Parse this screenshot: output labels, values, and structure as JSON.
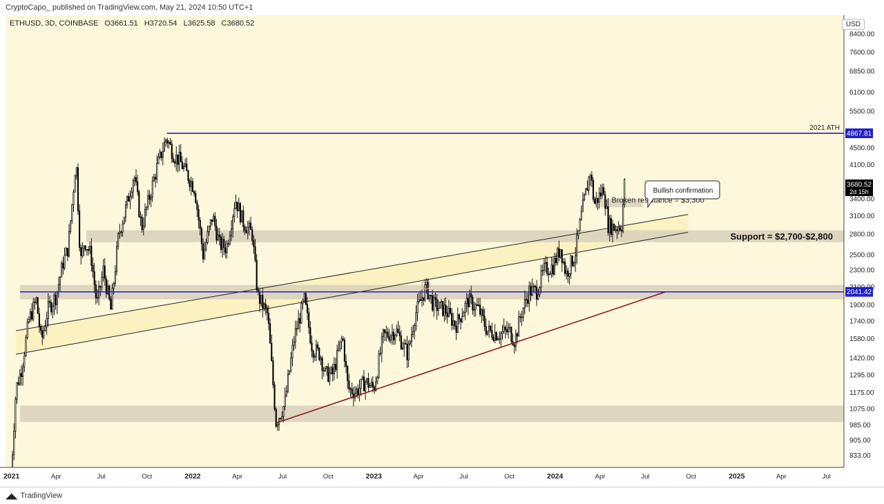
{
  "header": {
    "published_text": "CryptoCapo_ published on TradingView.com, May 21, 2024 10:50 UTC+1"
  },
  "legend": {
    "symbol": "ETHUSD, 3D, COINBASE",
    "open": "O3661.51",
    "high": "H3720.54",
    "low": "L3625.58",
    "close": "C3680.52"
  },
  "footer": {
    "logo_text": "TradingView"
  },
  "colors": {
    "background": "#fdf7dc",
    "candle_up": "#ffffff",
    "candle_down": "#000000",
    "zone": "#d8d0bc",
    "channel_fill": "#fbefb8",
    "blue_line": "#2020c8",
    "support_trend": "#8b1a1a",
    "price_label_bg": "#000000"
  },
  "annotations": {
    "ath_label": "2021 ATH",
    "bullish": "Bullish confirmation",
    "broken_resistance": "Broken resistance = $3,300",
    "support": "Support = $2,700-$2,800"
  },
  "chart_data": {
    "type": "candlestick",
    "symbol": "ETHUSD",
    "timeframe": "3D",
    "exchange": "COINBASE",
    "currency": "USD",
    "log_scale": true,
    "y_ticks": [
      833,
      905,
      985,
      1075,
      1175,
      1295,
      1420,
      1580,
      1740,
      1900,
      2100,
      2300,
      2500,
      2800,
      3100,
      3400,
      4100,
      4500,
      5500,
      6100,
      6850,
      7600,
      8400
    ],
    "ylim": [
      780,
      9300
    ],
    "x_ticks": [
      {
        "label": "2021",
        "date": "2021-01-01",
        "bold": true
      },
      {
        "label": "Apr",
        "date": "2021-04-01"
      },
      {
        "label": "Jul",
        "date": "2021-07-01"
      },
      {
        "label": "Oct",
        "date": "2021-10-01"
      },
      {
        "label": "2022",
        "date": "2022-01-01",
        "bold": true
      },
      {
        "label": "Apr",
        "date": "2022-04-01"
      },
      {
        "label": "Jul",
        "date": "2022-07-01"
      },
      {
        "label": "Oct",
        "date": "2022-10-01"
      },
      {
        "label": "2023",
        "date": "2023-01-01",
        "bold": true
      },
      {
        "label": "Apr",
        "date": "2023-04-01"
      },
      {
        "label": "Jul",
        "date": "2023-07-01"
      },
      {
        "label": "Oct",
        "date": "2023-10-01"
      },
      {
        "label": "2024",
        "date": "2024-01-01",
        "bold": true
      },
      {
        "label": "Apr",
        "date": "2024-04-01"
      },
      {
        "label": "Jul",
        "date": "2024-07-01"
      },
      {
        "label": "Oct",
        "date": "2024-10-01"
      },
      {
        "label": "2025",
        "date": "2025-01-01",
        "bold": true
      },
      {
        "label": "Apr",
        "date": "2025-04-01"
      },
      {
        "label": "Jul",
        "date": "2025-07-01"
      }
    ],
    "xlim": [
      "2020-12-20",
      "2025-08-05"
    ],
    "price_path": [
      [
        "2020-12-31",
        740
      ],
      [
        "2021-01-10",
        1200
      ],
      [
        "2021-01-22",
        1350
      ],
      [
        "2021-02-05",
        1750
      ],
      [
        "2021-02-20",
        1950
      ],
      [
        "2021-03-02",
        1550
      ],
      [
        "2021-03-15",
        1850
      ],
      [
        "2021-04-01",
        2000
      ],
      [
        "2021-04-15",
        2400
      ],
      [
        "2021-04-25",
        2600
      ],
      [
        "2021-05-05",
        3500
      ],
      [
        "2021-05-11",
        4250
      ],
      [
        "2021-05-20",
        2400
      ],
      [
        "2021-05-28",
        2700
      ],
      [
        "2021-06-10",
        2500
      ],
      [
        "2021-06-22",
        1900
      ],
      [
        "2021-07-05",
        2300
      ],
      [
        "2021-07-20",
        1850
      ],
      [
        "2021-08-05",
        2800
      ],
      [
        "2021-08-20",
        3250
      ],
      [
        "2021-09-05",
        3900
      ],
      [
        "2021-09-20",
        2900
      ],
      [
        "2021-10-05",
        3400
      ],
      [
        "2021-10-20",
        4000
      ],
      [
        "2021-11-09",
        4750
      ],
      [
        "2021-11-25",
        4300
      ],
      [
        "2021-12-05",
        4200
      ],
      [
        "2021-12-20",
        3900
      ],
      [
        "2022-01-05",
        3600
      ],
      [
        "2022-01-22",
        2500
      ],
      [
        "2022-02-10",
        3100
      ],
      [
        "2022-02-24",
        2650
      ],
      [
        "2022-03-10",
        2600
      ],
      [
        "2022-03-28",
        3400
      ],
      [
        "2022-04-12",
        3000
      ],
      [
        "2022-05-01",
        2800
      ],
      [
        "2022-05-12",
        2000
      ],
      [
        "2022-06-01",
        1800
      ],
      [
        "2022-06-18",
        1000
      ],
      [
        "2022-07-05",
        1100
      ],
      [
        "2022-07-25",
        1600
      ],
      [
        "2022-08-14",
        1950
      ],
      [
        "2022-08-30",
        1500
      ],
      [
        "2022-09-15",
        1450
      ],
      [
        "2022-09-25",
        1300
      ],
      [
        "2022-10-10",
        1300
      ],
      [
        "2022-10-30",
        1600
      ],
      [
        "2022-11-10",
        1200
      ],
      [
        "2022-11-25",
        1180
      ],
      [
        "2022-12-15",
        1250
      ],
      [
        "2023-01-01",
        1200
      ],
      [
        "2023-01-20",
        1600
      ],
      [
        "2023-02-15",
        1650
      ],
      [
        "2023-03-10",
        1450
      ],
      [
        "2023-03-25",
        1800
      ],
      [
        "2023-04-16",
        2100
      ],
      [
        "2023-05-01",
        1900
      ],
      [
        "2023-05-25",
        1850
      ],
      [
        "2023-06-15",
        1700
      ],
      [
        "2023-07-10",
        1950
      ],
      [
        "2023-08-01",
        1850
      ],
      [
        "2023-08-17",
        1650
      ],
      [
        "2023-09-10",
        1620
      ],
      [
        "2023-10-01",
        1650
      ],
      [
        "2023-10-12",
        1560
      ],
      [
        "2023-10-24",
        1800
      ],
      [
        "2023-11-10",
        2050
      ],
      [
        "2023-11-25",
        2050
      ],
      [
        "2023-12-10",
        2300
      ],
      [
        "2023-12-28",
        2350
      ],
      [
        "2024-01-12",
        2600
      ],
      [
        "2024-01-23",
        2250
      ],
      [
        "2024-02-10",
        2500
      ],
      [
        "2024-02-25",
        3200
      ],
      [
        "2024-03-12",
        3950
      ],
      [
        "2024-03-20",
        3300
      ],
      [
        "2024-04-08",
        3600
      ],
      [
        "2024-04-17",
        2950
      ],
      [
        "2024-05-01",
        2900
      ],
      [
        "2024-05-14",
        2950
      ],
      [
        "2024-05-20",
        3680
      ]
    ],
    "horizontal_lines": [
      {
        "price": 4867.81,
        "label": "4867.81",
        "from": "2021-11-10",
        "note": "2021 ATH",
        "color": "#2020c8"
      },
      {
        "price": 2041.42,
        "label": "2041.42",
        "from": "2021-01-18",
        "color": "#2020c8"
      }
    ],
    "current_price": {
      "value": 3680.52,
      "label": "3680.52",
      "countdown": "2d 15h"
    },
    "support_zones": [
      {
        "from": "2021-06-01",
        "to": "2025-08-05",
        "low": 2680,
        "high": 2860
      },
      {
        "from": "2021-01-18",
        "to": "2025-08-05",
        "low": 1960,
        "high": 2120
      },
      {
        "from": "2021-01-18",
        "to": "2025-08-05",
        "low": 1000,
        "high": 1095
      },
      {
        "from": "2024-04-01",
        "to": "2024-06-25",
        "low": 3250,
        "high": 3400
      }
    ],
    "channel": {
      "upper": [
        [
          "2021-01-10",
          1650
        ],
        [
          "2024-09-25",
          3120
        ]
      ],
      "lower": [
        [
          "2021-01-10",
          1450
        ],
        [
          "2024-09-25",
          2830
        ]
      ]
    },
    "trendline": [
      [
        "2022-06-18",
        995
      ],
      [
        "2024-08-10",
        2040
      ]
    ],
    "highlight_circle": {
      "date": "2023-04-16",
      "price": 2120
    }
  }
}
